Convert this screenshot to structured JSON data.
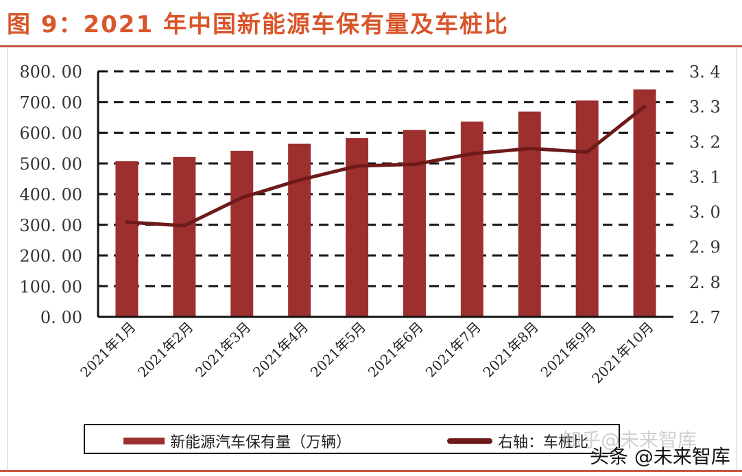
{
  "figure": {
    "title": "图 9：2021 年中国新能源车保有量及车桩比"
  },
  "legend": {
    "items": [
      {
        "label": "新能源汽车保有量（万辆）",
        "type": "bar",
        "color": "#9E2F2F"
      },
      {
        "label": "右轴：车桩比",
        "type": "line",
        "color": "#6E1A1A"
      }
    ]
  },
  "watermarks": {
    "zhihu": "知乎@未来智库",
    "toutiao": "头条 @未来智库"
  },
  "axes": {
    "left_ticks": [
      "800. 00",
      "700. 00",
      "600. 00",
      "500. 00",
      "400. 00",
      "300. 00",
      "200. 00",
      "100. 00",
      "0. 00"
    ],
    "right_ticks": [
      "3. 4",
      "3. 3",
      "3. 2",
      "3. 1",
      "3. 0",
      "2. 9",
      "2. 8",
      "2. 7"
    ]
  },
  "chart_data": {
    "type": "bar",
    "title": "2021 年中国新能源车保有量及车桩比",
    "categories": [
      "2021年1月",
      "2021年2月",
      "2021年3月",
      "2021年4月",
      "2021年5月",
      "2021年6月",
      "2021年7月",
      "2021年8月",
      "2021年9月",
      "2021年10月"
    ],
    "series": [
      {
        "name": "新能源汽车保有量（万辆）",
        "type": "bar",
        "axis": "left",
        "color": "#9E2F2F",
        "values": [
          507,
          521,
          541,
          564,
          583,
          609,
          636,
          669,
          705,
          741
        ]
      },
      {
        "name": "右轴：车桩比",
        "type": "line",
        "axis": "right",
        "color": "#6E1A1A",
        "values": [
          2.97,
          2.96,
          3.04,
          3.09,
          3.13,
          3.135,
          3.165,
          3.18,
          3.17,
          3.3
        ]
      }
    ],
    "xlabel": "",
    "ylabel": "",
    "ylim": [
      0,
      800
    ],
    "y2lim": [
      2.7,
      3.4
    ],
    "y_ticks": [
      0,
      100,
      200,
      300,
      400,
      500,
      600,
      700,
      800
    ],
    "y2_ticks": [
      2.7,
      2.8,
      2.9,
      3.0,
      3.1,
      3.2,
      3.3,
      3.4
    ],
    "grid": "dashed horizontal",
    "legend_position": "bottom"
  }
}
